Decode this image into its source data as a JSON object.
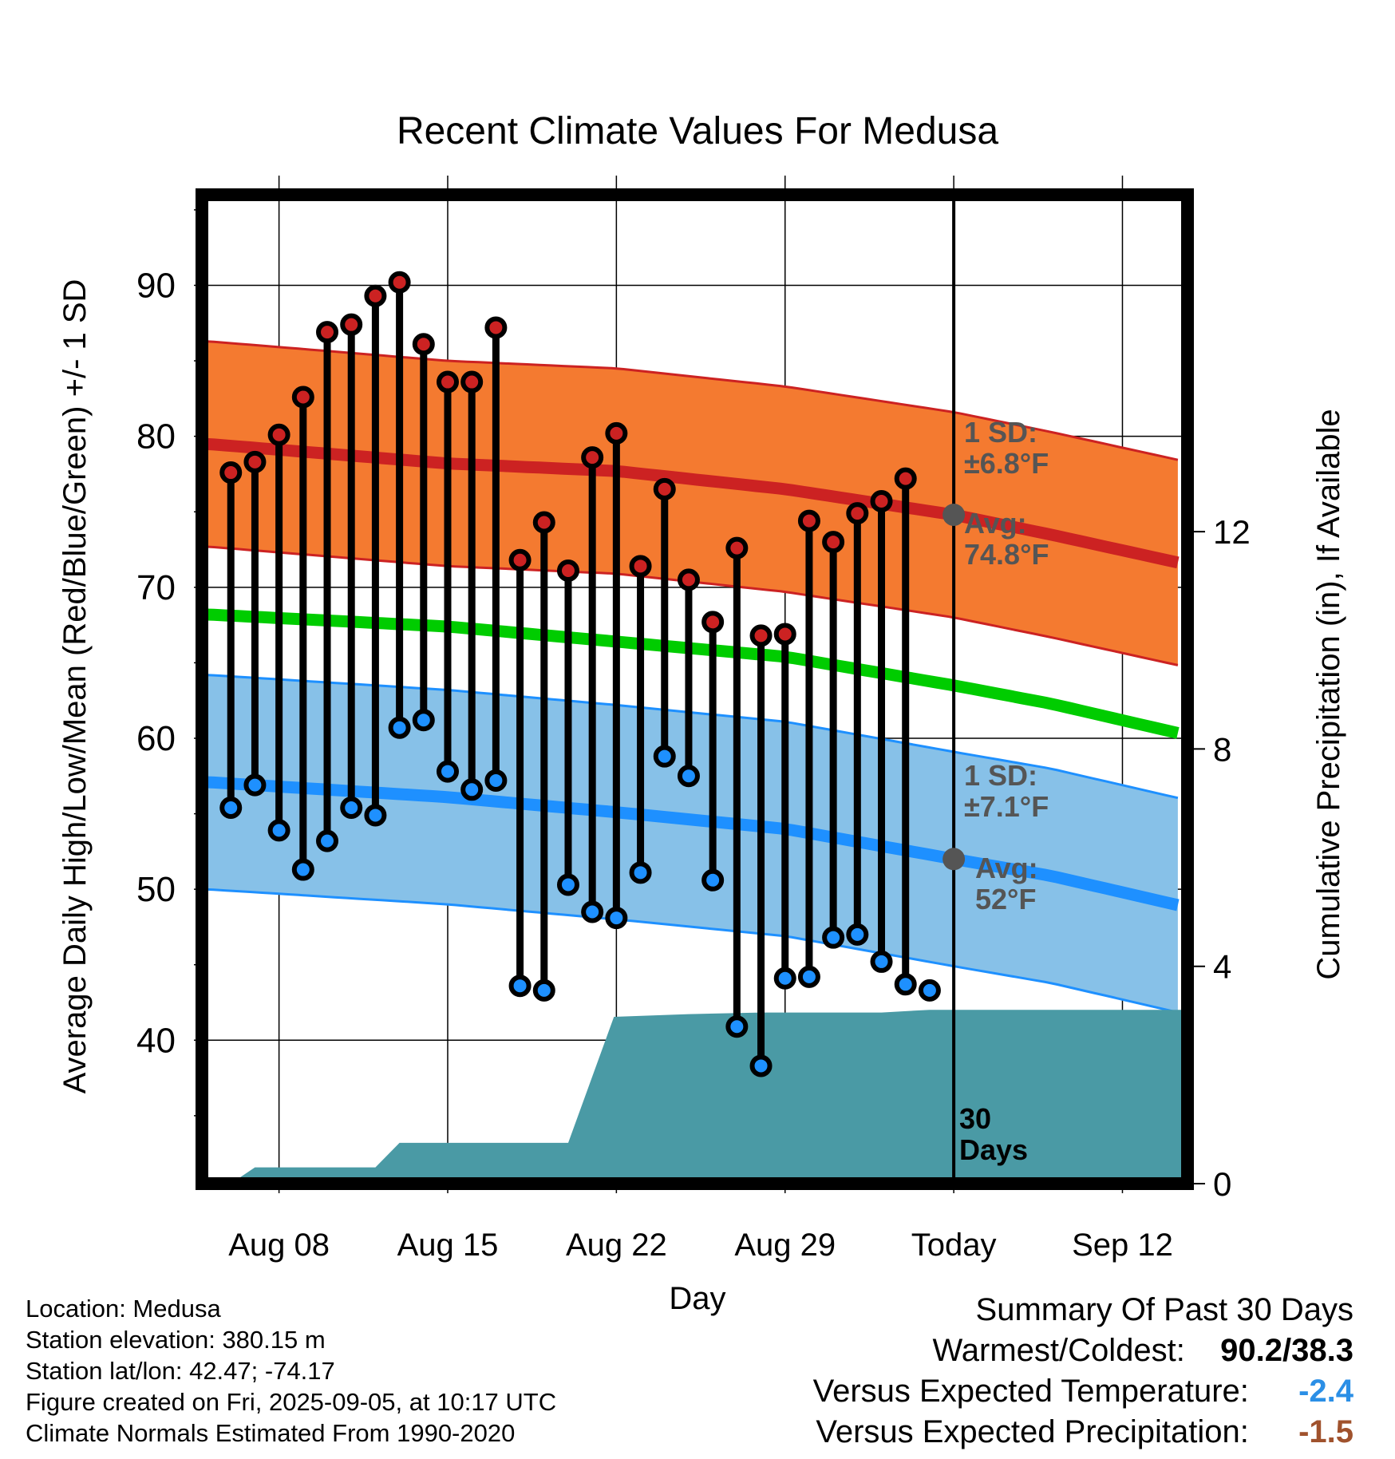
{
  "chart_data": {
    "type": "line",
    "title": "Recent Climate Values For Medusa",
    "xlabel": "Day",
    "ylabel": "Average Daily High/Low/Mean (Red/Blue/Green) +/- 1 SD",
    "y2label": "Cumulative Precipitation (in), If Available",
    "x_tick_labels": [
      "Aug 08",
      "Aug 15",
      "Aug 22",
      "Aug 29",
      "Today",
      "Sep 12"
    ],
    "x_tick_days": [
      0,
      7,
      14,
      21,
      28,
      35
    ],
    "xlim_days": [
      -3.2,
      37.7
    ],
    "ylim": [
      30.5,
      96
    ],
    "y_ticks": [
      40,
      50,
      60,
      70,
      80,
      90
    ],
    "y2lim": [
      0,
      18.2
    ],
    "y2_ticks": [
      0,
      4,
      8,
      12
    ],
    "grid": true,
    "colors": {
      "high": "#cc2222",
      "high_band": "#f47a30",
      "low": "#1e90ff",
      "low_band": "#87c1e8",
      "mean": "#00cc00",
      "precip": "#4a9aa5",
      "today_marker": "#555555"
    },
    "normal_high": {
      "x": [
        -3,
        7,
        14,
        21,
        28,
        32,
        37.7
      ],
      "y": [
        79.5,
        78.2,
        77.7,
        76.5,
        74.8,
        73.5,
        71.5
      ]
    },
    "normal_high_sd": 6.8,
    "normal_low": {
      "x": [
        -3,
        7,
        14,
        21,
        28,
        32,
        37.7
      ],
      "y": [
        57.1,
        56.1,
        55.1,
        54.0,
        52.0,
        50.9,
        48.8
      ]
    },
    "normal_low_sd": 7.1,
    "normal_mean": {
      "x": [
        -3,
        7,
        14,
        21,
        28,
        32,
        37.7
      ],
      "y": [
        68.2,
        67.4,
        66.4,
        65.4,
        63.5,
        62.3,
        60.2
      ]
    },
    "daily": {
      "x": [
        -2,
        -1,
        0,
        1,
        2,
        3,
        4,
        5,
        6,
        7,
        8,
        9,
        10,
        11,
        12,
        13,
        14,
        15,
        16,
        17,
        18,
        19,
        20,
        21,
        22,
        23,
        24,
        25,
        26,
        27
      ],
      "high": [
        77.6,
        78.3,
        80.1,
        82.6,
        86.9,
        87.4,
        89.3,
        90.2,
        86.1,
        83.6,
        83.6,
        87.2,
        71.8,
        74.3,
        71.1,
        78.6,
        80.2,
        71.4,
        76.5,
        70.5,
        67.7,
        72.6,
        66.8,
        66.9,
        74.4,
        73.0,
        74.9,
        75.7,
        77.2,
        null
      ],
      "low": [
        55.4,
        56.9,
        53.9,
        51.3,
        53.2,
        55.4,
        54.9,
        60.7,
        61.2,
        57.8,
        56.6,
        57.2,
        43.6,
        43.3,
        50.3,
        48.5,
        48.1,
        51.1,
        58.8,
        57.5,
        50.6,
        40.9,
        38.3,
        44.1,
        44.2,
        46.8,
        47.0,
        45.2,
        43.7,
        43.3
      ]
    },
    "precip": {
      "x": [
        -2,
        -1,
        2,
        4,
        5,
        11,
        12,
        13.9,
        17,
        20,
        25,
        27,
        37.7
      ],
      "y": [
        0,
        0.3,
        0.3,
        0.3,
        0.75,
        0.75,
        0.75,
        3.07,
        3.12,
        3.15,
        3.15,
        3.2,
        3.2
      ]
    },
    "annotations": {
      "high_sd": "1 SD:\n±6.8°F",
      "high_avg": "Avg:\n74.8°F",
      "low_sd": "1 SD:\n±7.1°F",
      "low_avg": "Avg:\n52°F",
      "days": "30\nDays"
    }
  },
  "footer": {
    "location": "Location: Medusa",
    "elevation": "Station elevation: 380.15 m",
    "latlon": "Station lat/lon: 42.47; -74.17",
    "created": "Figure created on Fri, 2025-09-05, at 10:17 UTC",
    "normals": "Climate Normals Estimated From 1990-2020"
  },
  "summary": {
    "title": "Summary Of Past 30 Days",
    "warm_cold_label": "Warmest/Coldest:",
    "warm_cold_value": "90.2/38.3",
    "temp_label": "Versus Expected Temperature:",
    "temp_value": "-2.4",
    "temp_color": "#2b8fe6",
    "precip_label": "Versus Expected Precipitation:",
    "precip_value": "-1.5",
    "precip_color": "#a0522d"
  }
}
